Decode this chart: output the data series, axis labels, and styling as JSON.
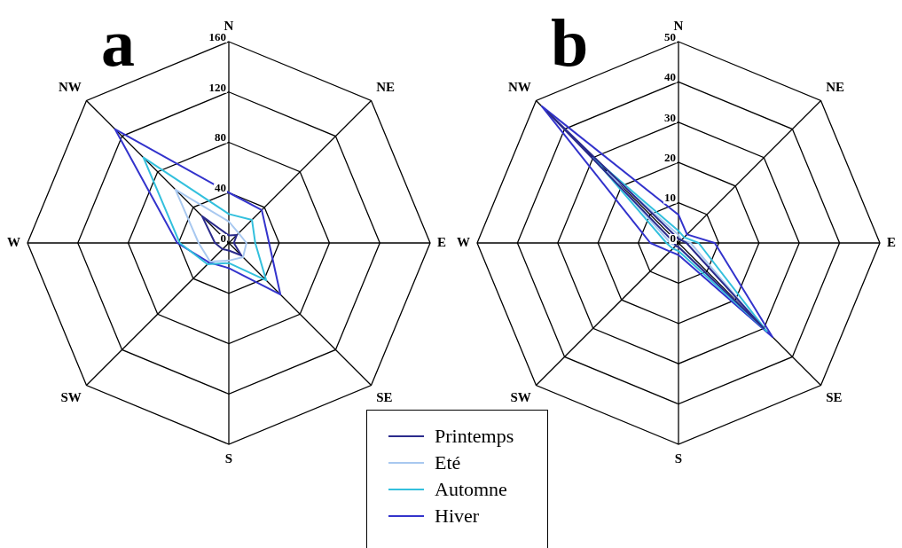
{
  "chart_data": [
    {
      "type": "radar",
      "title": "a",
      "categories": [
        "N",
        "NE",
        "E",
        "SE",
        "S",
        "SW",
        "W",
        "NW"
      ],
      "ylim": [
        0,
        160
      ],
      "yticks": [
        0,
        40,
        80,
        120,
        160
      ],
      "grid": true,
      "legend": "bottom",
      "marker": "none",
      "series": [
        {
          "name": "Printemps",
          "color": "#2b2b8c",
          "values": [
            6,
            9,
            4,
            14,
            6,
            7,
            11,
            30
          ]
        },
        {
          "name": "Eté",
          "color": "#a8c8f0",
          "values": [
            17,
            11,
            14,
            16,
            14,
            21,
            24,
            60
          ]
        },
        {
          "name": "Automne",
          "color": "#33c0dd",
          "values": [
            23,
            26,
            21,
            42,
            16,
            24,
            39,
            96
          ]
        },
        {
          "name": "Hiver",
          "color": "#3333cc",
          "values": [
            40,
            37,
            32,
            58,
            20,
            22,
            41,
            128
          ]
        }
      ]
    },
    {
      "type": "radar",
      "title": "b",
      "categories": [
        "N",
        "NE",
        "E",
        "SE",
        "S",
        "SW",
        "W",
        "NW"
      ],
      "ylim": [
        0,
        50
      ],
      "yticks": [
        0,
        10,
        20,
        30,
        40,
        50
      ],
      "grid": true,
      "legend": false,
      "marker": "none",
      "series": [
        {
          "color": "#2b2b8c",
          "values": [
            1,
            1,
            2,
            30,
            1,
            1,
            1,
            46
          ]
        },
        {
          "color": "#a8c8f0",
          "values": [
            2,
            1,
            3,
            28,
            1,
            1,
            2,
            25
          ]
        },
        {
          "color": "#33c0dd",
          "values": [
            3,
            2,
            5,
            31,
            2,
            2,
            3,
            30
          ]
        },
        {
          "color": "#3333cc",
          "values": [
            7,
            3,
            9,
            33,
            3,
            3,
            7,
            48
          ]
        }
      ]
    }
  ]
}
